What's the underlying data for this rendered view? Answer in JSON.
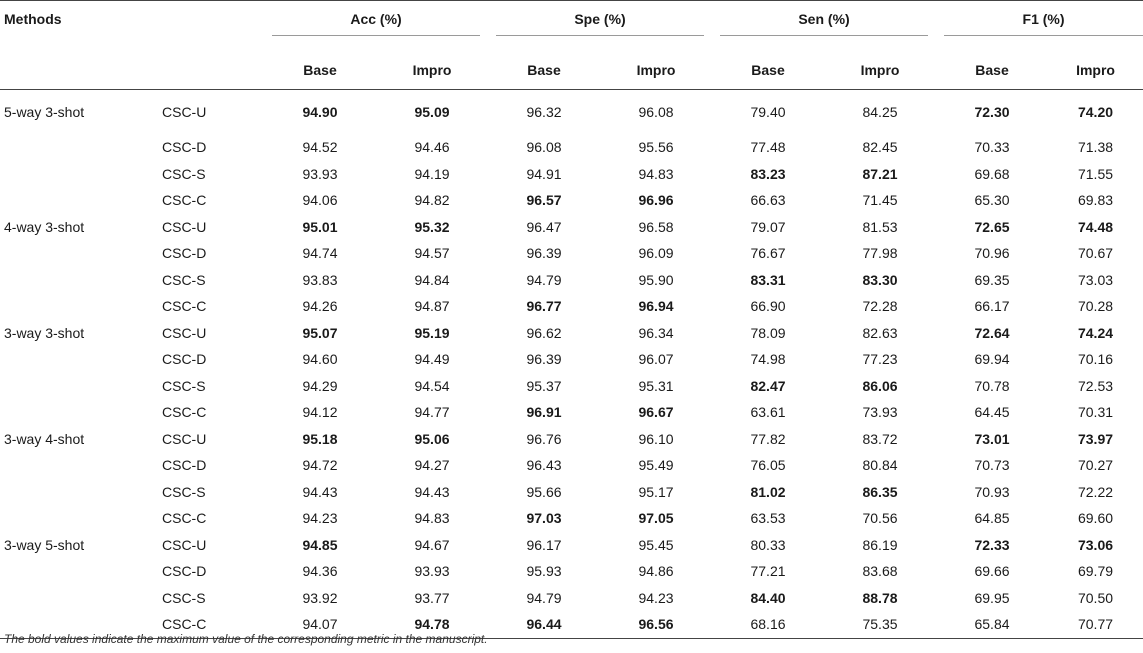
{
  "header": {
    "methods_label": "Methods",
    "groups": [
      "Acc (%)",
      "Spe (%)",
      "Sen (%)",
      "F1 (%)"
    ],
    "sub": [
      "Base",
      "Impro"
    ]
  },
  "rows": [
    {
      "method": "5-way 3-shot",
      "variant": "CSC-U",
      "vals": [
        "94.90",
        "95.09",
        "96.32",
        "96.08",
        "79.40",
        "84.25",
        "72.30",
        "74.20"
      ],
      "bold": [
        1,
        1,
        0,
        0,
        0,
        0,
        1,
        1
      ]
    },
    {
      "method": "",
      "variant": "CSC-D",
      "vals": [
        "94.52",
        "94.46",
        "96.08",
        "95.56",
        "77.48",
        "82.45",
        "70.33",
        "71.38"
      ],
      "bold": [
        0,
        0,
        0,
        0,
        0,
        0,
        0,
        0
      ]
    },
    {
      "method": "",
      "variant": "CSC-S",
      "vals": [
        "93.93",
        "94.19",
        "94.91",
        "94.83",
        "83.23",
        "87.21",
        "69.68",
        "71.55"
      ],
      "bold": [
        0,
        0,
        0,
        0,
        1,
        1,
        0,
        0
      ]
    },
    {
      "method": "",
      "variant": "CSC-C",
      "vals": [
        "94.06",
        "94.82",
        "96.57",
        "96.96",
        "66.63",
        "71.45",
        "65.30",
        "69.83"
      ],
      "bold": [
        0,
        0,
        1,
        1,
        0,
        0,
        0,
        0
      ]
    },
    {
      "method": "4-way 3-shot",
      "variant": "CSC-U",
      "vals": [
        "95.01",
        "95.32",
        "96.47",
        "96.58",
        "79.07",
        "81.53",
        "72.65",
        "74.48"
      ],
      "bold": [
        1,
        1,
        0,
        0,
        0,
        0,
        1,
        1
      ]
    },
    {
      "method": "",
      "variant": "CSC-D",
      "vals": [
        "94.74",
        "94.57",
        "96.39",
        "96.09",
        "76.67",
        "77.98",
        "70.96",
        "70.67"
      ],
      "bold": [
        0,
        0,
        0,
        0,
        0,
        0,
        0,
        0
      ]
    },
    {
      "method": "",
      "variant": "CSC-S",
      "vals": [
        "93.83",
        "94.84",
        "94.79",
        "95.90",
        "83.31",
        "83.30",
        "69.35",
        "73.03"
      ],
      "bold": [
        0,
        0,
        0,
        0,
        1,
        1,
        0,
        0
      ]
    },
    {
      "method": "",
      "variant": "CSC-C",
      "vals": [
        "94.26",
        "94.87",
        "96.77",
        "96.94",
        "66.90",
        "72.28",
        "66.17",
        "70.28"
      ],
      "bold": [
        0,
        0,
        1,
        1,
        0,
        0,
        0,
        0
      ]
    },
    {
      "method": "3-way 3-shot",
      "variant": "CSC-U",
      "vals": [
        "95.07",
        "95.19",
        "96.62",
        "96.34",
        "78.09",
        "82.63",
        "72.64",
        "74.24"
      ],
      "bold": [
        1,
        1,
        0,
        0,
        0,
        0,
        1,
        1
      ]
    },
    {
      "method": "",
      "variant": "CSC-D",
      "vals": [
        "94.60",
        "94.49",
        "96.39",
        "96.07",
        "74.98",
        "77.23",
        "69.94",
        "70.16"
      ],
      "bold": [
        0,
        0,
        0,
        0,
        0,
        0,
        0,
        0
      ]
    },
    {
      "method": "",
      "variant": "CSC-S",
      "vals": [
        "94.29",
        "94.54",
        "95.37",
        "95.31",
        "82.47",
        "86.06",
        "70.78",
        "72.53"
      ],
      "bold": [
        0,
        0,
        0,
        0,
        1,
        1,
        0,
        0
      ]
    },
    {
      "method": "",
      "variant": "CSC-C",
      "vals": [
        "94.12",
        "94.77",
        "96.91",
        "96.67",
        "63.61",
        "73.93",
        "64.45",
        "70.31"
      ],
      "bold": [
        0,
        0,
        1,
        1,
        0,
        0,
        0,
        0
      ]
    },
    {
      "method": "3-way 4-shot",
      "variant": "CSC-U",
      "vals": [
        "95.18",
        "95.06",
        "96.76",
        "96.10",
        "77.82",
        "83.72",
        "73.01",
        "73.97"
      ],
      "bold": [
        1,
        1,
        0,
        0,
        0,
        0,
        1,
        1
      ]
    },
    {
      "method": "",
      "variant": "CSC-D",
      "vals": [
        "94.72",
        "94.27",
        "96.43",
        "95.49",
        "76.05",
        "80.84",
        "70.73",
        "70.27"
      ],
      "bold": [
        0,
        0,
        0,
        0,
        0,
        0,
        0,
        0
      ]
    },
    {
      "method": "",
      "variant": "CSC-S",
      "vals": [
        "94.43",
        "94.43",
        "95.66",
        "95.17",
        "81.02",
        "86.35",
        "70.93",
        "72.22"
      ],
      "bold": [
        0,
        0,
        0,
        0,
        1,
        1,
        0,
        0
      ]
    },
    {
      "method": "",
      "variant": "CSC-C",
      "vals": [
        "94.23",
        "94.83",
        "97.03",
        "97.05",
        "63.53",
        "70.56",
        "64.85",
        "69.60"
      ],
      "bold": [
        0,
        0,
        1,
        1,
        0,
        0,
        0,
        0
      ]
    },
    {
      "method": "3-way 5-shot",
      "variant": "CSC-U",
      "vals": [
        "94.85",
        "94.67",
        "96.17",
        "95.45",
        "80.33",
        "86.19",
        "72.33",
        "73.06"
      ],
      "bold": [
        1,
        0,
        0,
        0,
        0,
        0,
        1,
        1
      ]
    },
    {
      "method": "",
      "variant": "CSC-D",
      "vals": [
        "94.36",
        "93.93",
        "95.93",
        "94.86",
        "77.21",
        "83.68",
        "69.66",
        "69.79"
      ],
      "bold": [
        0,
        0,
        0,
        0,
        0,
        0,
        0,
        0
      ]
    },
    {
      "method": "",
      "variant": "CSC-S",
      "vals": [
        "93.92",
        "93.77",
        "94.79",
        "94.23",
        "84.40",
        "88.78",
        "69.95",
        "70.50"
      ],
      "bold": [
        0,
        0,
        0,
        0,
        1,
        1,
        0,
        0
      ]
    },
    {
      "method": "",
      "variant": "CSC-C",
      "vals": [
        "94.07",
        "94.78",
        "96.44",
        "96.56",
        "68.16",
        "75.35",
        "65.84",
        "70.77"
      ],
      "bold": [
        0,
        1,
        1,
        1,
        0,
        0,
        0,
        0
      ]
    }
  ],
  "footnote": "The bold values indicate the maximum value of the corresponding metric in the manuscript."
}
